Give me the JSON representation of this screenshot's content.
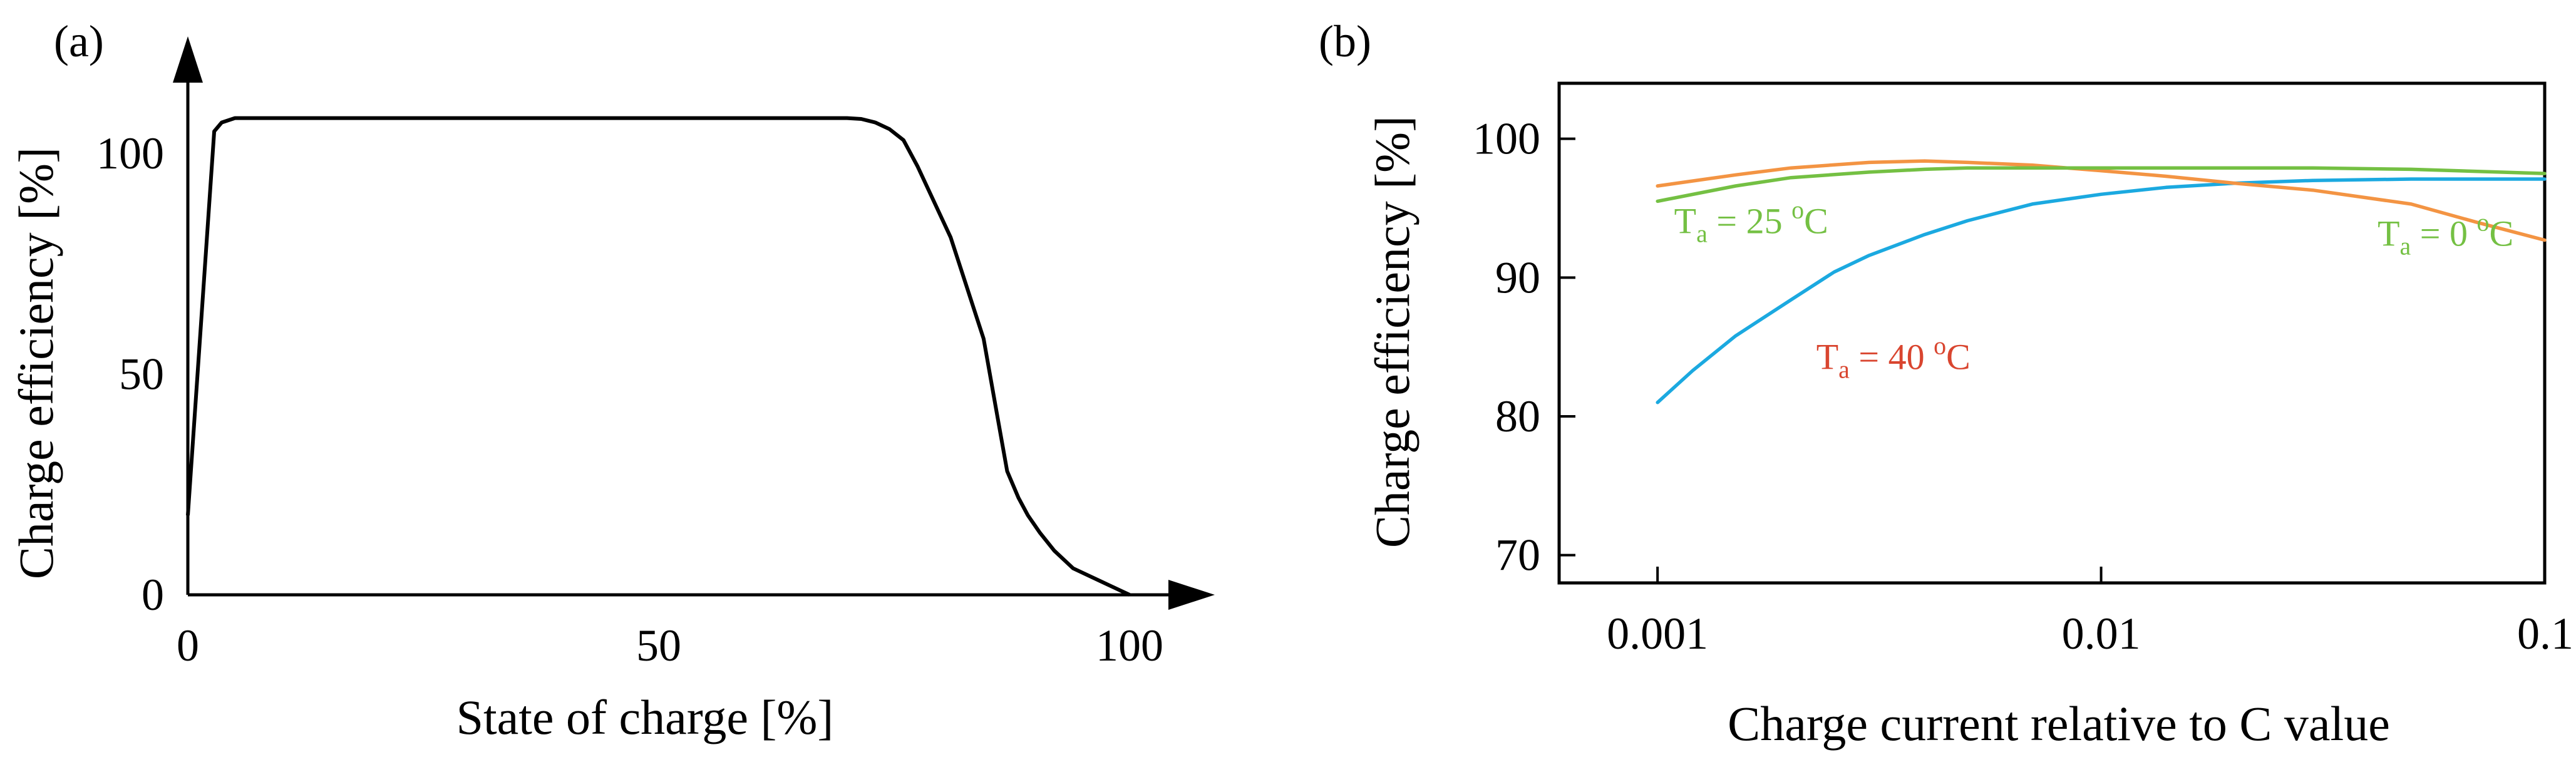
{
  "chart_data": [
    {
      "panel": "(a)",
      "type": "line",
      "title": "",
      "xlabel": "State of charge [%]",
      "ylabel": "Charge efficiency [%]",
      "xlim": [
        0,
        110
      ],
      "ylim": [
        0,
        118
      ],
      "xticks": [
        0,
        50,
        100
      ],
      "yticks": [
        0,
        50,
        100
      ],
      "xtick_labels": [
        "0",
        "50",
        "100"
      ],
      "ytick_labels": [
        "0",
        "50",
        "100"
      ],
      "grid": false,
      "series": [
        {
          "name": "Charge efficiency",
          "color": "#000000",
          "x": [
            0,
            2.8,
            3.6,
            5,
            10,
            30,
            50,
            70,
            71.5,
            73,
            74.5,
            76,
            77.5,
            81,
            84.5,
            86,
            87,
            88.2,
            89.2,
            90.5,
            92,
            94,
            97,
            99,
            100
          ],
          "y": [
            18,
            105,
            107,
            108,
            108,
            108,
            108,
            108,
            107.8,
            107,
            105.5,
            103,
            97,
            81,
            58,
            40,
            28,
            22,
            18,
            14,
            10,
            6,
            3,
            1,
            0
          ]
        }
      ]
    },
    {
      "panel": "(b)",
      "type": "line",
      "title": "",
      "xlabel": "Charge current relative to C value",
      "ylabel": "Charge efficiency [%]",
      "xscale": "log",
      "xlim": [
        0.0006,
        0.1
      ],
      "ylim": [
        68,
        104
      ],
      "xticks": [
        0.001,
        0.01,
        0.1
      ],
      "yticks": [
        70,
        80,
        90,
        100
      ],
      "xtick_labels": [
        "0.001",
        "0.01",
        "0.1"
      ],
      "ytick_labels": [
        "70",
        "80",
        "90",
        "100"
      ],
      "grid": false,
      "series": [
        {
          "name": "Ta = 40 °C",
          "color": "#1ba9e0",
          "x": [
            0.001,
            0.0012,
            0.0015,
            0.002,
            0.0025,
            0.003,
            0.004,
            0.005,
            0.007,
            0.01,
            0.014,
            0.02,
            0.03,
            0.05,
            0.1
          ],
          "y": [
            81,
            83.3,
            85.8,
            88.4,
            90.4,
            91.6,
            93.1,
            94.1,
            95.3,
            96.0,
            96.5,
            96.8,
            97.0,
            97.1,
            97.1
          ]
        },
        {
          "name": "Ta = 25 °C",
          "color": "#f39443",
          "x": [
            0.001,
            0.0015,
            0.002,
            0.003,
            0.004,
            0.005,
            0.007,
            0.01,
            0.014,
            0.02,
            0.03,
            0.05,
            0.07,
            0.1
          ],
          "y": [
            96.6,
            97.4,
            97.9,
            98.3,
            98.4,
            98.3,
            98.1,
            97.7,
            97.3,
            96.8,
            96.3,
            95.3,
            94.0,
            92.7
          ]
        },
        {
          "name": "Ta = 0 °C",
          "color": "#74c043",
          "x": [
            0.001,
            0.0015,
            0.002,
            0.003,
            0.004,
            0.005,
            0.007,
            0.01,
            0.02,
            0.03,
            0.05,
            0.1
          ],
          "y": [
            95.5,
            96.6,
            97.2,
            97.6,
            97.8,
            97.9,
            97.9,
            97.9,
            97.9,
            97.9,
            97.8,
            97.5
          ]
        }
      ],
      "annotations": [
        {
          "id": "ann-25",
          "prefix": "T",
          "sub": "a",
          "mid": " = 25 ",
          "sup": "o",
          "suffix": "C",
          "color": "#74c043",
          "x": 0.00109,
          "y": 93.2
        },
        {
          "id": "ann-0",
          "prefix": "T",
          "sub": "a",
          "mid": " = 0 ",
          "sup": "o",
          "suffix": "C",
          "color": "#74c043",
          "x": 0.042,
          "y": 92.3
        },
        {
          "id": "ann-40",
          "prefix": "T",
          "sub": "a",
          "mid": " = 40 ",
          "sup": "o",
          "suffix": "C",
          "color": "#d9452f",
          "x": 0.00228,
          "y": 83.4
        }
      ]
    }
  ]
}
